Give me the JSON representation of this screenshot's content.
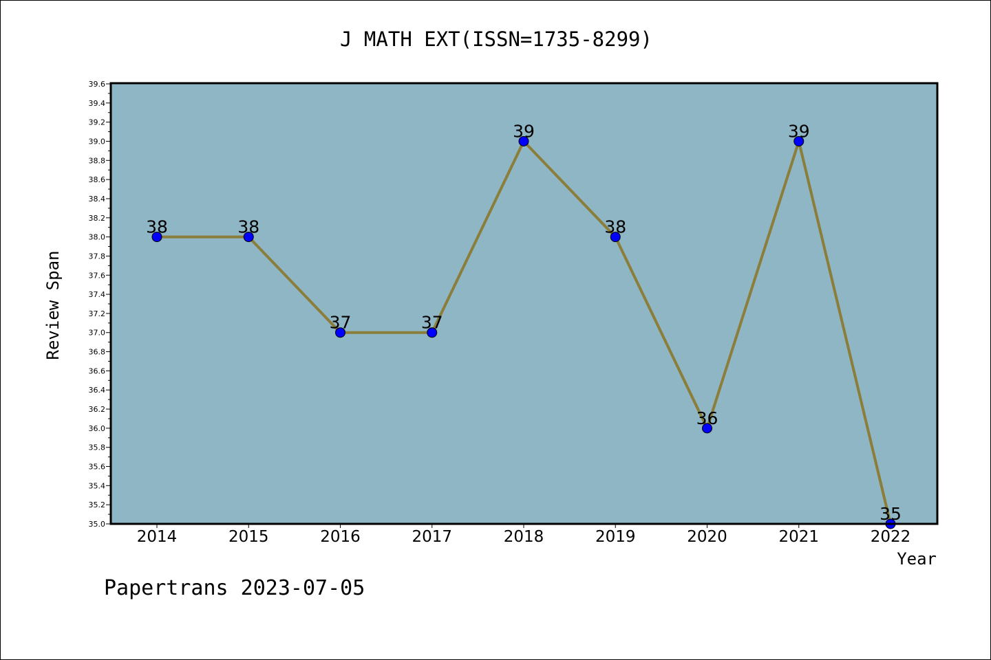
{
  "chart_data": {
    "type": "line",
    "title": "J MATH EXT(ISSN=1735-8299)",
    "xlabel": "Year",
    "ylabel": "Review Span",
    "categories": [
      "2014",
      "2015",
      "2016",
      "2017",
      "2018",
      "2019",
      "2020",
      "2021",
      "2022"
    ],
    "values": [
      38,
      38,
      37,
      37,
      39,
      38,
      36,
      39,
      35
    ],
    "data_labels": [
      "38",
      "38",
      "37",
      "37",
      "39",
      "38",
      "36",
      "39",
      "35"
    ],
    "ylim": [
      35.0,
      39.6
    ],
    "y_ticks": [
      "35.0",
      "35.2",
      "35.4",
      "35.6",
      "35.8",
      "36.0",
      "36.2",
      "36.4",
      "36.6",
      "36.8",
      "37.0",
      "37.2",
      "37.4",
      "37.6",
      "37.8",
      "38.0",
      "38.2",
      "38.4",
      "38.6",
      "38.8",
      "39.0",
      "39.2",
      "39.4",
      "39.6"
    ],
    "grid": false,
    "legend": "none"
  },
  "footer": "Papertrans 2023-07-05",
  "colors": {
    "plot_background": "#8fb6c4",
    "line": "#8b7d3a",
    "marker": "#0000ff",
    "axis": "#000000"
  }
}
